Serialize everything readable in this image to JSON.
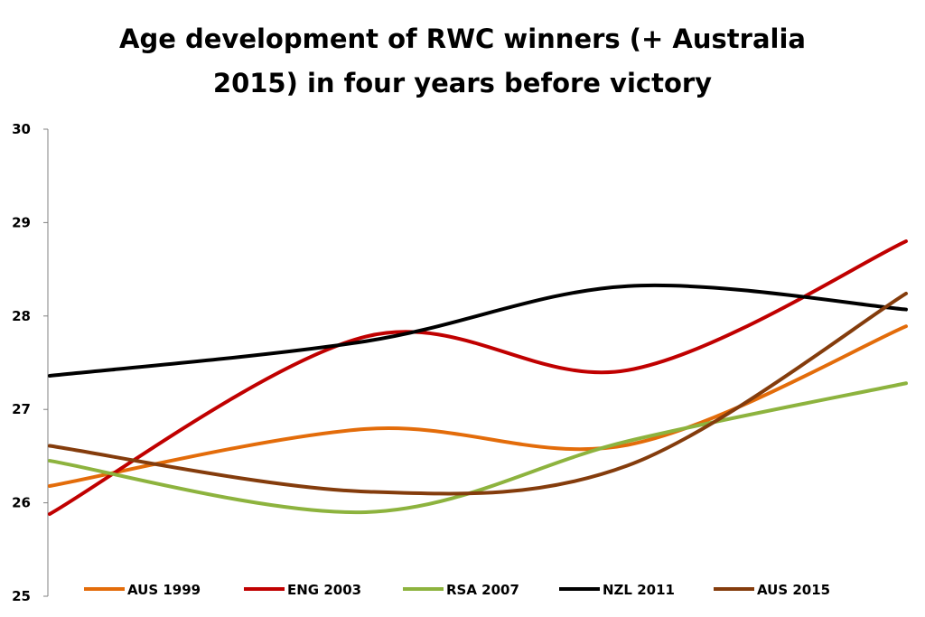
{
  "chart_data": {
    "type": "line",
    "title_lines": [
      "Age development of RWC winners (+ Australia",
      "2015) in four years before victory"
    ],
    "xlabel": "",
    "ylabel": "",
    "ylim": [
      25,
      30
    ],
    "y_ticks": [
      "25",
      "26",
      "27",
      "28",
      "29",
      "30"
    ],
    "grid": false,
    "legend_position": "bottom",
    "x": [
      0,
      1,
      2,
      3
    ],
    "series": [
      {
        "name": "AUS 1999",
        "color": "#E36C0A",
        "values": [
          26.18,
          26.79,
          26.62,
          27.89
        ]
      },
      {
        "name": "ENG 2003",
        "color": "#C00000",
        "values": [
          25.88,
          27.78,
          27.42,
          28.8
        ]
      },
      {
        "name": "RSA 2007",
        "color": "#8DB33E",
        "values": [
          26.45,
          25.9,
          26.66,
          27.28
        ]
      },
      {
        "name": "NZL 2011",
        "color": "#000000",
        "values": [
          27.36,
          27.73,
          28.32,
          28.07
        ]
      },
      {
        "name": "AUS 2015",
        "color": "#843C0C",
        "values": [
          26.61,
          26.12,
          26.4,
          28.24
        ]
      }
    ]
  }
}
